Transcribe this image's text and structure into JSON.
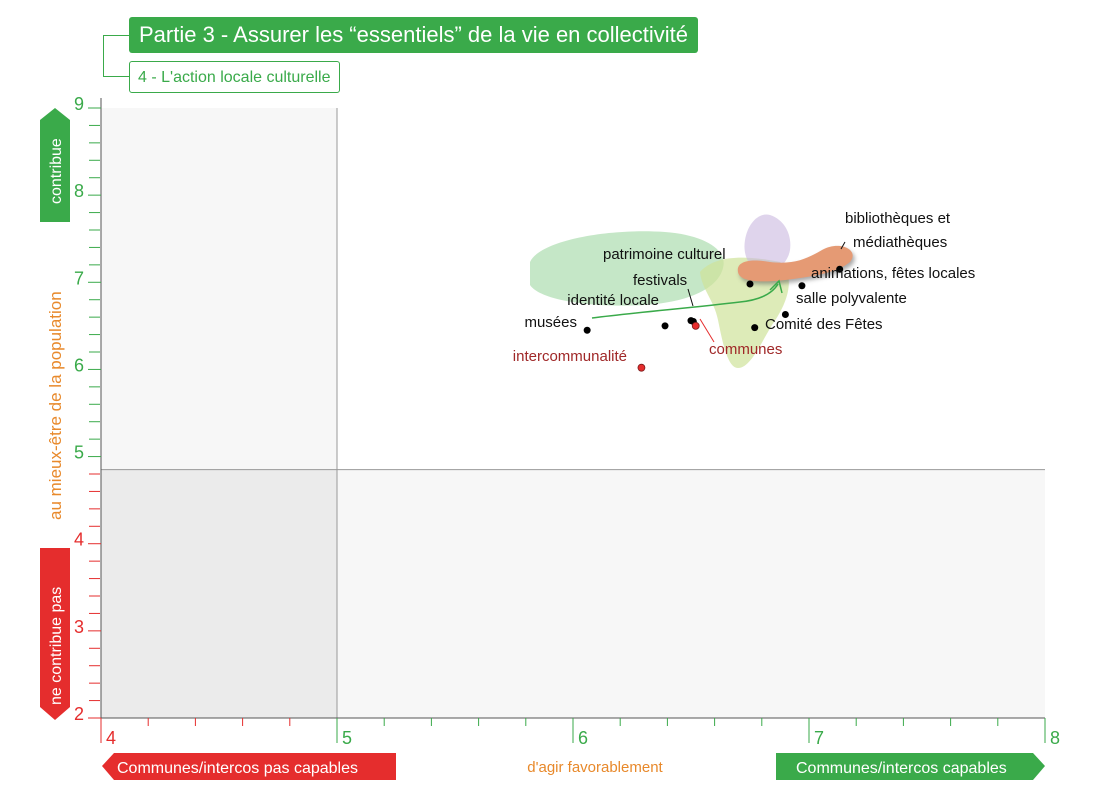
{
  "header": {
    "title": "Partie 3 - Assurer les “essentiels” de la vie en collectivité",
    "subtitle": "4 - L'action locale culturelle"
  },
  "colors": {
    "green": "#3aaa4a",
    "red": "#e52d2d",
    "orange": "#e8892b",
    "dark_red": "#a02828",
    "quadrant_gray": "#ebebeb",
    "quadrant_light": "#f7f7f7"
  },
  "chart_data": {
    "type": "scatter",
    "title": "Partie 3 - Assurer les “essentiels” de la vie en collectivité",
    "subtitle": "4 - L'action locale culturelle",
    "xlabel": "d'agir favorablement",
    "ylabel": "au mieux-être de la population",
    "x_left_label": "Communes/intercos pas capables",
    "x_right_label": "Communes/intercos capables",
    "y_top_label": "contribue",
    "y_bottom_label": "ne contribue pas",
    "xlim": [
      4,
      8
    ],
    "ylim": [
      2,
      9
    ],
    "x_ticks": [
      4,
      5,
      6,
      7,
      8
    ],
    "x_tick_labels": [
      "4",
      "5",
      "6",
      "7",
      "8"
    ],
    "y_ticks": [
      2,
      3,
      4,
      5,
      6,
      7,
      8,
      9
    ],
    "y_tick_labels": [
      "2",
      "3",
      "4",
      "5",
      "6",
      "7",
      "8",
      "9"
    ],
    "x_split": 5,
    "y_split": 4.85,
    "points": [
      {
        "label": "musées",
        "x": 6.06,
        "y": 6.45,
        "color": "#000000"
      },
      {
        "label": "identité locale",
        "x": 6.39,
        "y": 6.5,
        "color": "#000000"
      },
      {
        "label": "festivals",
        "x": 6.5,
        "y": 6.56,
        "color": "#000000"
      },
      {
        "label": "patrimoine culturel",
        "x": 6.51,
        "y": 6.55,
        "color": "#000000"
      },
      {
        "label": "communes",
        "x": 6.52,
        "y": 6.5,
        "color": "#e52d2d"
      },
      {
        "label": "intercommunalité",
        "x": 6.29,
        "y": 6.02,
        "color": "#e52d2d"
      },
      {
        "label": "Comité des Fêtes",
        "x": 6.77,
        "y": 6.48,
        "color": "#000000"
      },
      {
        "label": "salle polyvalente",
        "x": 6.9,
        "y": 6.63,
        "color": "#000000"
      },
      {
        "label": "animations, fêtes locales",
        "x": 6.97,
        "y": 6.96,
        "color": "#000000"
      },
      {
        "label": "",
        "x": 6.75,
        "y": 6.98,
        "color": "#000000"
      },
      {
        "label": "bibliothèques et médiathèques",
        "x": 7.13,
        "y": 7.15,
        "color": "#000000"
      }
    ]
  }
}
